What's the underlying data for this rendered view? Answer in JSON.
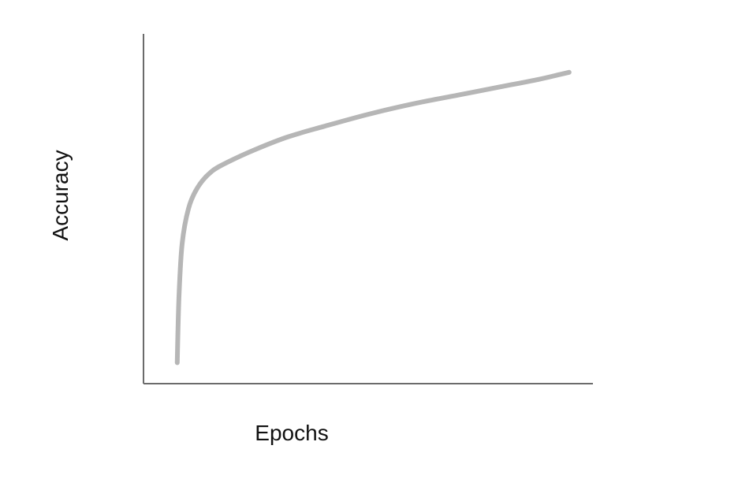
{
  "chart_data": {
    "type": "line",
    "xlabel": "Epochs",
    "ylabel": "Accuracy",
    "xlim": [
      0,
      100
    ],
    "ylim": [
      0,
      100
    ],
    "grid": false,
    "series": [
      {
        "color": "#b6b6b6",
        "points": [
          [
            7.5,
            6
          ],
          [
            7.9,
            25
          ],
          [
            8.6,
            40
          ],
          [
            10,
            50
          ],
          [
            12,
            56
          ],
          [
            15,
            60.5
          ],
          [
            19,
            63.5
          ],
          [
            25,
            67
          ],
          [
            32,
            70.5
          ],
          [
            40,
            73.5
          ],
          [
            50,
            77
          ],
          [
            60,
            80
          ],
          [
            70,
            82.5
          ],
          [
            80,
            85
          ],
          [
            88,
            87
          ],
          [
            93,
            88.5
          ],
          [
            94.7,
            89
          ]
        ]
      }
    ]
  }
}
